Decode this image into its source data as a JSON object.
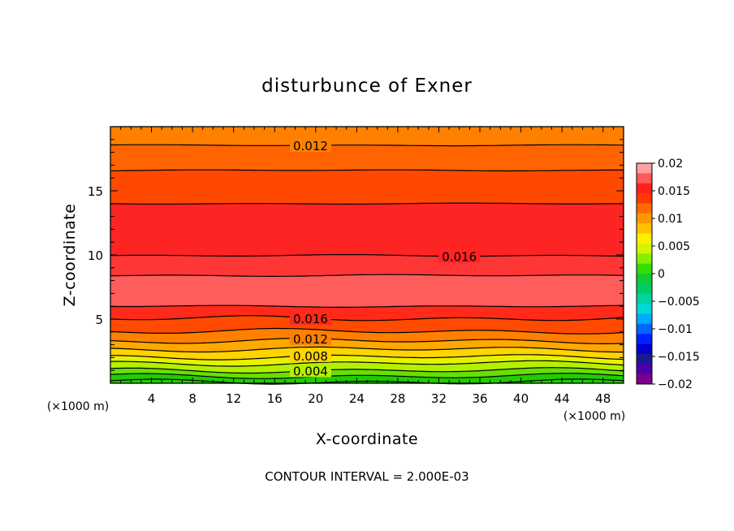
{
  "chart_data": {
    "type": "contour",
    "title": "disturbunce of Exner",
    "xlabel": "X-coordinate",
    "ylabel": "Z-coordinate",
    "x_unit": "(×1000 m)",
    "xlim": [
      0,
      50
    ],
    "ylim": [
      0,
      20
    ],
    "x_ticks": [
      4,
      8,
      12,
      16,
      20,
      24,
      28,
      32,
      36,
      40,
      44,
      48
    ],
    "y_ticks": [
      5,
      10,
      15
    ],
    "contour_interval_text": "CONTOUR INTERVAL = 2.000E-03",
    "contour_interval": 0.002,
    "colorbar": {
      "range": [
        -0.02,
        0.02
      ],
      "tick_labels": [
        "0.02",
        "0.015",
        "0.01",
        "0.005",
        "0",
        "−0.005",
        "−0.01",
        "−0.015",
        "−0.02"
      ],
      "colors": [
        "#ffa0a0",
        "#ff5a5a",
        "#ff2020",
        "#ff3a00",
        "#ff6a00",
        "#ff9800",
        "#ffc000",
        "#ffee00",
        "#d6f400",
        "#88ee00",
        "#33dd00",
        "#11cc33",
        "#00cc66",
        "#00d4a0",
        "#00d8d8",
        "#00aaff",
        "#0066ff",
        "#0022ff",
        "#0000cc",
        "#1a1a90",
        "#4b00a8",
        "#7a0090"
      ]
    },
    "levels": [
      {
        "value": 0.0,
        "z": 0.1,
        "labeled": false,
        "color": "#22cc00"
      },
      {
        "value": 0.002,
        "z": 0.55,
        "labeled": false,
        "color": "#66e000"
      },
      {
        "value": 0.004,
        "z": 1.0,
        "labeled": true,
        "label": "0.004",
        "label_x": 19.5,
        "color": "#b4f000"
      },
      {
        "value": 0.006,
        "z": 1.55,
        "labeled": false,
        "color": "#e6f200"
      },
      {
        "value": 0.008,
        "z": 2.05,
        "labeled": true,
        "label": "0.008",
        "label_x": 19.5,
        "color": "#ffd400"
      },
      {
        "value": 0.01,
        "z": 2.65,
        "labeled": false,
        "color": "#ffa800"
      },
      {
        "value": 0.012,
        "z": 3.3,
        "labeled": true,
        "label": "0.012",
        "label_x": 19.5,
        "color": "#ff8000"
      },
      {
        "value": 0.014,
        "z": 4.05,
        "labeled": false,
        "color": "#ff4a00"
      },
      {
        "value": 0.016,
        "z": 5.05,
        "labeled": true,
        "label": "0.016",
        "label_x": 19.5,
        "color": "#ff2a1a"
      },
      {
        "value": 0.018,
        "z": 6.0,
        "labeled": false,
        "color": "#ff5c5c"
      },
      {
        "value": 0.018,
        "z": 8.4,
        "labeled": false,
        "color": "#ff3636"
      },
      {
        "value": 0.016,
        "z": 9.95,
        "labeled": true,
        "label": "0.016",
        "label_x": 34.0,
        "color": "#ff2424"
      },
      {
        "value": 0.014,
        "z": 14.0,
        "labeled": false,
        "color": "#ff4800"
      },
      {
        "value": 0.012,
        "z": 16.6,
        "labeled": false,
        "color": "#ff6400"
      },
      {
        "value": 0.012,
        "z": 18.55,
        "labeled": true,
        "label": "0.012",
        "label_x": 19.5,
        "color": "#ff8000"
      }
    ]
  }
}
